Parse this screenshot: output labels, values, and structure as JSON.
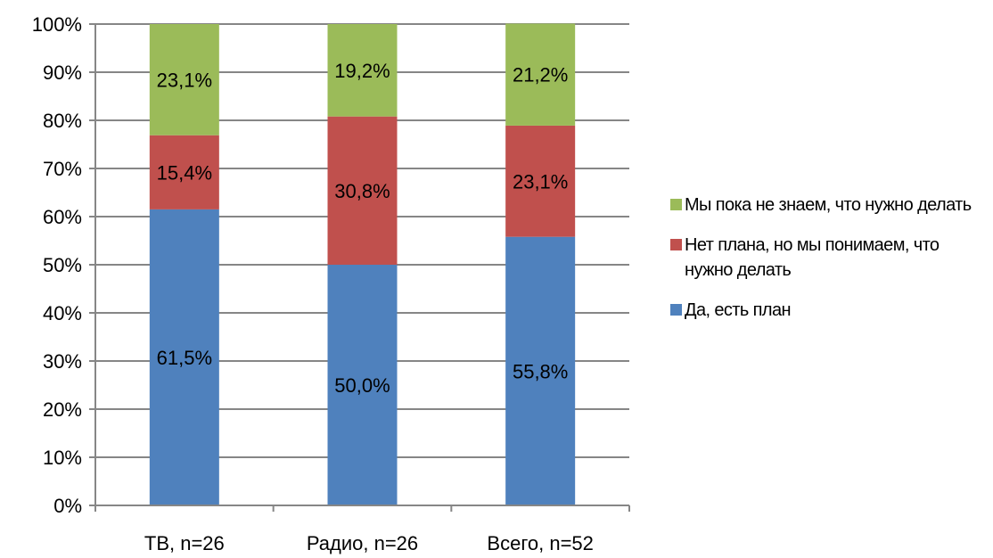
{
  "chart_data": {
    "type": "bar",
    "stacked": true,
    "categories": [
      "ТВ, n=26",
      "Радио, n=26",
      "Всего, n=52"
    ],
    "series": [
      {
        "name": "Да, есть план",
        "color": "#4f81bd",
        "values": [
          61.5,
          50.0,
          55.8
        ],
        "labels": [
          "61,5%",
          "50,0%",
          "55,8%"
        ]
      },
      {
        "name": "Нет плана, но мы понимаем, что нужно делать",
        "color": "#c0504d",
        "values": [
          15.4,
          30.8,
          23.1
        ],
        "labels": [
          "15,4%",
          "30,8%",
          "23,1%"
        ]
      },
      {
        "name": "Мы пока не знаем, что нужно делать",
        "color": "#9bbb59",
        "values": [
          23.1,
          19.2,
          21.2
        ],
        "labels": [
          "23,1%",
          "19,2%",
          "21,2%"
        ]
      }
    ],
    "y_ticks": [
      "0%",
      "10%",
      "20%",
      "30%",
      "40%",
      "50%",
      "60%",
      "70%",
      "80%",
      "90%",
      "100%"
    ],
    "ylim": [
      0,
      100
    ],
    "grid": true,
    "legend_position": "right",
    "legend_order": [
      "Мы пока не знаем, что нужно делать",
      "Нет плана, но мы понимаем, что нужно делать",
      "Да, есть план"
    ]
  }
}
